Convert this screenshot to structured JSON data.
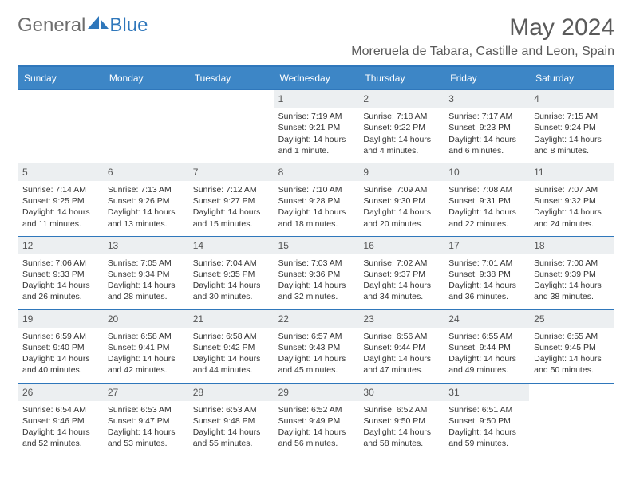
{
  "brand": {
    "part1": "General",
    "part2": "Blue"
  },
  "title": "May 2024",
  "location": "Moreruela de Tabara, Castille and Leon, Spain",
  "colors": {
    "header_bg": "#3d86c6",
    "border": "#2f77bb",
    "daynum_bg": "#eceff1",
    "text": "#333333",
    "logo_gray": "#6d6d6d",
    "logo_blue": "#2f77bb"
  },
  "day_headers": [
    "Sunday",
    "Monday",
    "Tuesday",
    "Wednesday",
    "Thursday",
    "Friday",
    "Saturday"
  ],
  "weeks": [
    [
      null,
      null,
      null,
      {
        "n": "1",
        "sunrise": "7:19 AM",
        "sunset": "9:21 PM",
        "daylight": "14 hours and 1 minute."
      },
      {
        "n": "2",
        "sunrise": "7:18 AM",
        "sunset": "9:22 PM",
        "daylight": "14 hours and 4 minutes."
      },
      {
        "n": "3",
        "sunrise": "7:17 AM",
        "sunset": "9:23 PM",
        "daylight": "14 hours and 6 minutes."
      },
      {
        "n": "4",
        "sunrise": "7:15 AM",
        "sunset": "9:24 PM",
        "daylight": "14 hours and 8 minutes."
      }
    ],
    [
      {
        "n": "5",
        "sunrise": "7:14 AM",
        "sunset": "9:25 PM",
        "daylight": "14 hours and 11 minutes."
      },
      {
        "n": "6",
        "sunrise": "7:13 AM",
        "sunset": "9:26 PM",
        "daylight": "14 hours and 13 minutes."
      },
      {
        "n": "7",
        "sunrise": "7:12 AM",
        "sunset": "9:27 PM",
        "daylight": "14 hours and 15 minutes."
      },
      {
        "n": "8",
        "sunrise": "7:10 AM",
        "sunset": "9:28 PM",
        "daylight": "14 hours and 18 minutes."
      },
      {
        "n": "9",
        "sunrise": "7:09 AM",
        "sunset": "9:30 PM",
        "daylight": "14 hours and 20 minutes."
      },
      {
        "n": "10",
        "sunrise": "7:08 AM",
        "sunset": "9:31 PM",
        "daylight": "14 hours and 22 minutes."
      },
      {
        "n": "11",
        "sunrise": "7:07 AM",
        "sunset": "9:32 PM",
        "daylight": "14 hours and 24 minutes."
      }
    ],
    [
      {
        "n": "12",
        "sunrise": "7:06 AM",
        "sunset": "9:33 PM",
        "daylight": "14 hours and 26 minutes."
      },
      {
        "n": "13",
        "sunrise": "7:05 AM",
        "sunset": "9:34 PM",
        "daylight": "14 hours and 28 minutes."
      },
      {
        "n": "14",
        "sunrise": "7:04 AM",
        "sunset": "9:35 PM",
        "daylight": "14 hours and 30 minutes."
      },
      {
        "n": "15",
        "sunrise": "7:03 AM",
        "sunset": "9:36 PM",
        "daylight": "14 hours and 32 minutes."
      },
      {
        "n": "16",
        "sunrise": "7:02 AM",
        "sunset": "9:37 PM",
        "daylight": "14 hours and 34 minutes."
      },
      {
        "n": "17",
        "sunrise": "7:01 AM",
        "sunset": "9:38 PM",
        "daylight": "14 hours and 36 minutes."
      },
      {
        "n": "18",
        "sunrise": "7:00 AM",
        "sunset": "9:39 PM",
        "daylight": "14 hours and 38 minutes."
      }
    ],
    [
      {
        "n": "19",
        "sunrise": "6:59 AM",
        "sunset": "9:40 PM",
        "daylight": "14 hours and 40 minutes."
      },
      {
        "n": "20",
        "sunrise": "6:58 AM",
        "sunset": "9:41 PM",
        "daylight": "14 hours and 42 minutes."
      },
      {
        "n": "21",
        "sunrise": "6:58 AM",
        "sunset": "9:42 PM",
        "daylight": "14 hours and 44 minutes."
      },
      {
        "n": "22",
        "sunrise": "6:57 AM",
        "sunset": "9:43 PM",
        "daylight": "14 hours and 45 minutes."
      },
      {
        "n": "23",
        "sunrise": "6:56 AM",
        "sunset": "9:44 PM",
        "daylight": "14 hours and 47 minutes."
      },
      {
        "n": "24",
        "sunrise": "6:55 AM",
        "sunset": "9:44 PM",
        "daylight": "14 hours and 49 minutes."
      },
      {
        "n": "25",
        "sunrise": "6:55 AM",
        "sunset": "9:45 PM",
        "daylight": "14 hours and 50 minutes."
      }
    ],
    [
      {
        "n": "26",
        "sunrise": "6:54 AM",
        "sunset": "9:46 PM",
        "daylight": "14 hours and 52 minutes."
      },
      {
        "n": "27",
        "sunrise": "6:53 AM",
        "sunset": "9:47 PM",
        "daylight": "14 hours and 53 minutes."
      },
      {
        "n": "28",
        "sunrise": "6:53 AM",
        "sunset": "9:48 PM",
        "daylight": "14 hours and 55 minutes."
      },
      {
        "n": "29",
        "sunrise": "6:52 AM",
        "sunset": "9:49 PM",
        "daylight": "14 hours and 56 minutes."
      },
      {
        "n": "30",
        "sunrise": "6:52 AM",
        "sunset": "9:50 PM",
        "daylight": "14 hours and 58 minutes."
      },
      {
        "n": "31",
        "sunrise": "6:51 AM",
        "sunset": "9:50 PM",
        "daylight": "14 hours and 59 minutes."
      },
      null
    ]
  ],
  "labels": {
    "sunrise": "Sunrise:",
    "sunset": "Sunset:",
    "daylight": "Daylight:"
  }
}
